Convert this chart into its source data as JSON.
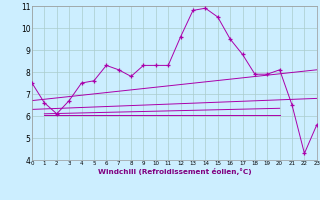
{
  "background_color": "#cceeff",
  "grid_color": "#aacccc",
  "line_color": "#aa00aa",
  "xlim": [
    0,
    23
  ],
  "ylim": [
    4,
    11
  ],
  "yticks": [
    4,
    5,
    6,
    7,
    8,
    9,
    10,
    11
  ],
  "xticks": [
    0,
    1,
    2,
    3,
    4,
    5,
    6,
    7,
    8,
    9,
    10,
    11,
    12,
    13,
    14,
    15,
    16,
    17,
    18,
    19,
    20,
    21,
    22,
    23
  ],
  "xlabel": "Windchill (Refroidissement éolien,°C)",
  "main_x": [
    0,
    1,
    2,
    3,
    4,
    5,
    6,
    7,
    8,
    9,
    10,
    11,
    12,
    13,
    14,
    15,
    16,
    17,
    18,
    19,
    20,
    21,
    22,
    23
  ],
  "main_y": [
    7.5,
    6.6,
    6.1,
    6.7,
    7.5,
    7.6,
    8.3,
    8.1,
    7.8,
    8.3,
    8.3,
    8.3,
    9.6,
    10.8,
    10.9,
    10.5,
    9.5,
    8.8,
    7.9,
    7.9,
    8.1,
    6.5,
    4.3,
    5.6
  ],
  "trend1_x": [
    0,
    23
  ],
  "trend1_y": [
    6.7,
    8.1
  ],
  "trend2_x": [
    0,
    23
  ],
  "trend2_y": [
    6.3,
    6.8
  ],
  "trend3_x": [
    1,
    20
  ],
  "trend3_y": [
    6.1,
    6.35
  ],
  "trend4_x": [
    1,
    20
  ],
  "trend4_y": [
    6.05,
    6.05
  ]
}
